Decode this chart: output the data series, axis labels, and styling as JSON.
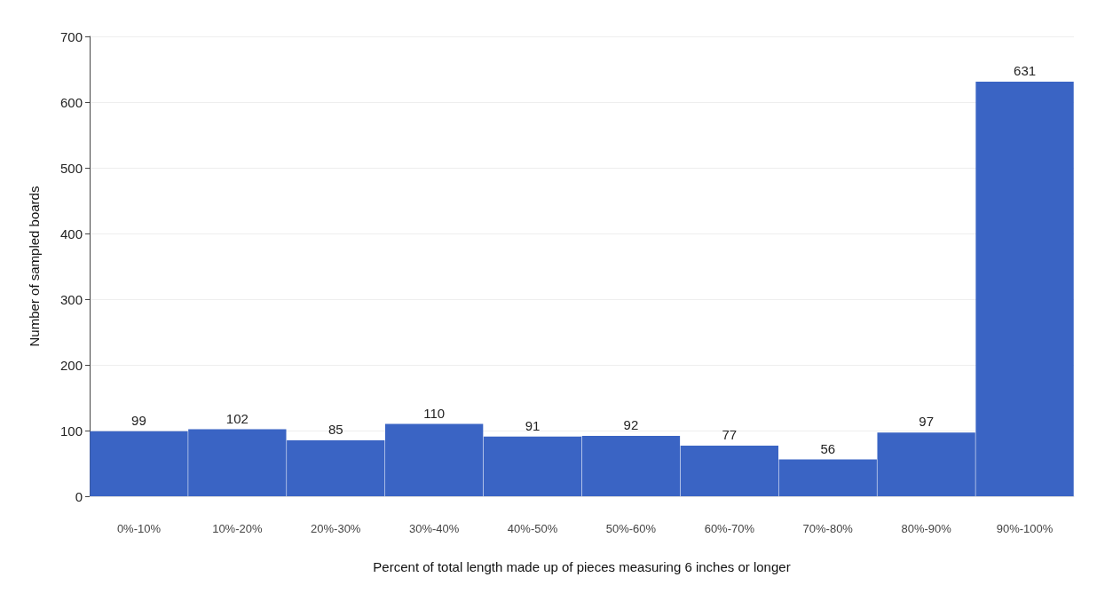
{
  "chart_data": {
    "type": "bar",
    "xlabel": "Percent of total length made up of pieces measuring 6 inches or longer",
    "ylabel": "Number of sampled boards",
    "categories": [
      "0%-10%",
      "10%-20%",
      "20%-30%",
      "30%-40%",
      "40%-50%",
      "50%-60%",
      "60%-70%",
      "70%-80%",
      "80%-90%",
      "90%-100%"
    ],
    "values": [
      99,
      102,
      85,
      110,
      91,
      92,
      77,
      56,
      97,
      631
    ],
    "color": "#3a64c4",
    "ylim": [
      0,
      700
    ],
    "yticks": [
      0,
      100,
      200,
      300,
      400,
      500,
      600,
      700
    ],
    "grid": "y",
    "data_labels": true
  }
}
